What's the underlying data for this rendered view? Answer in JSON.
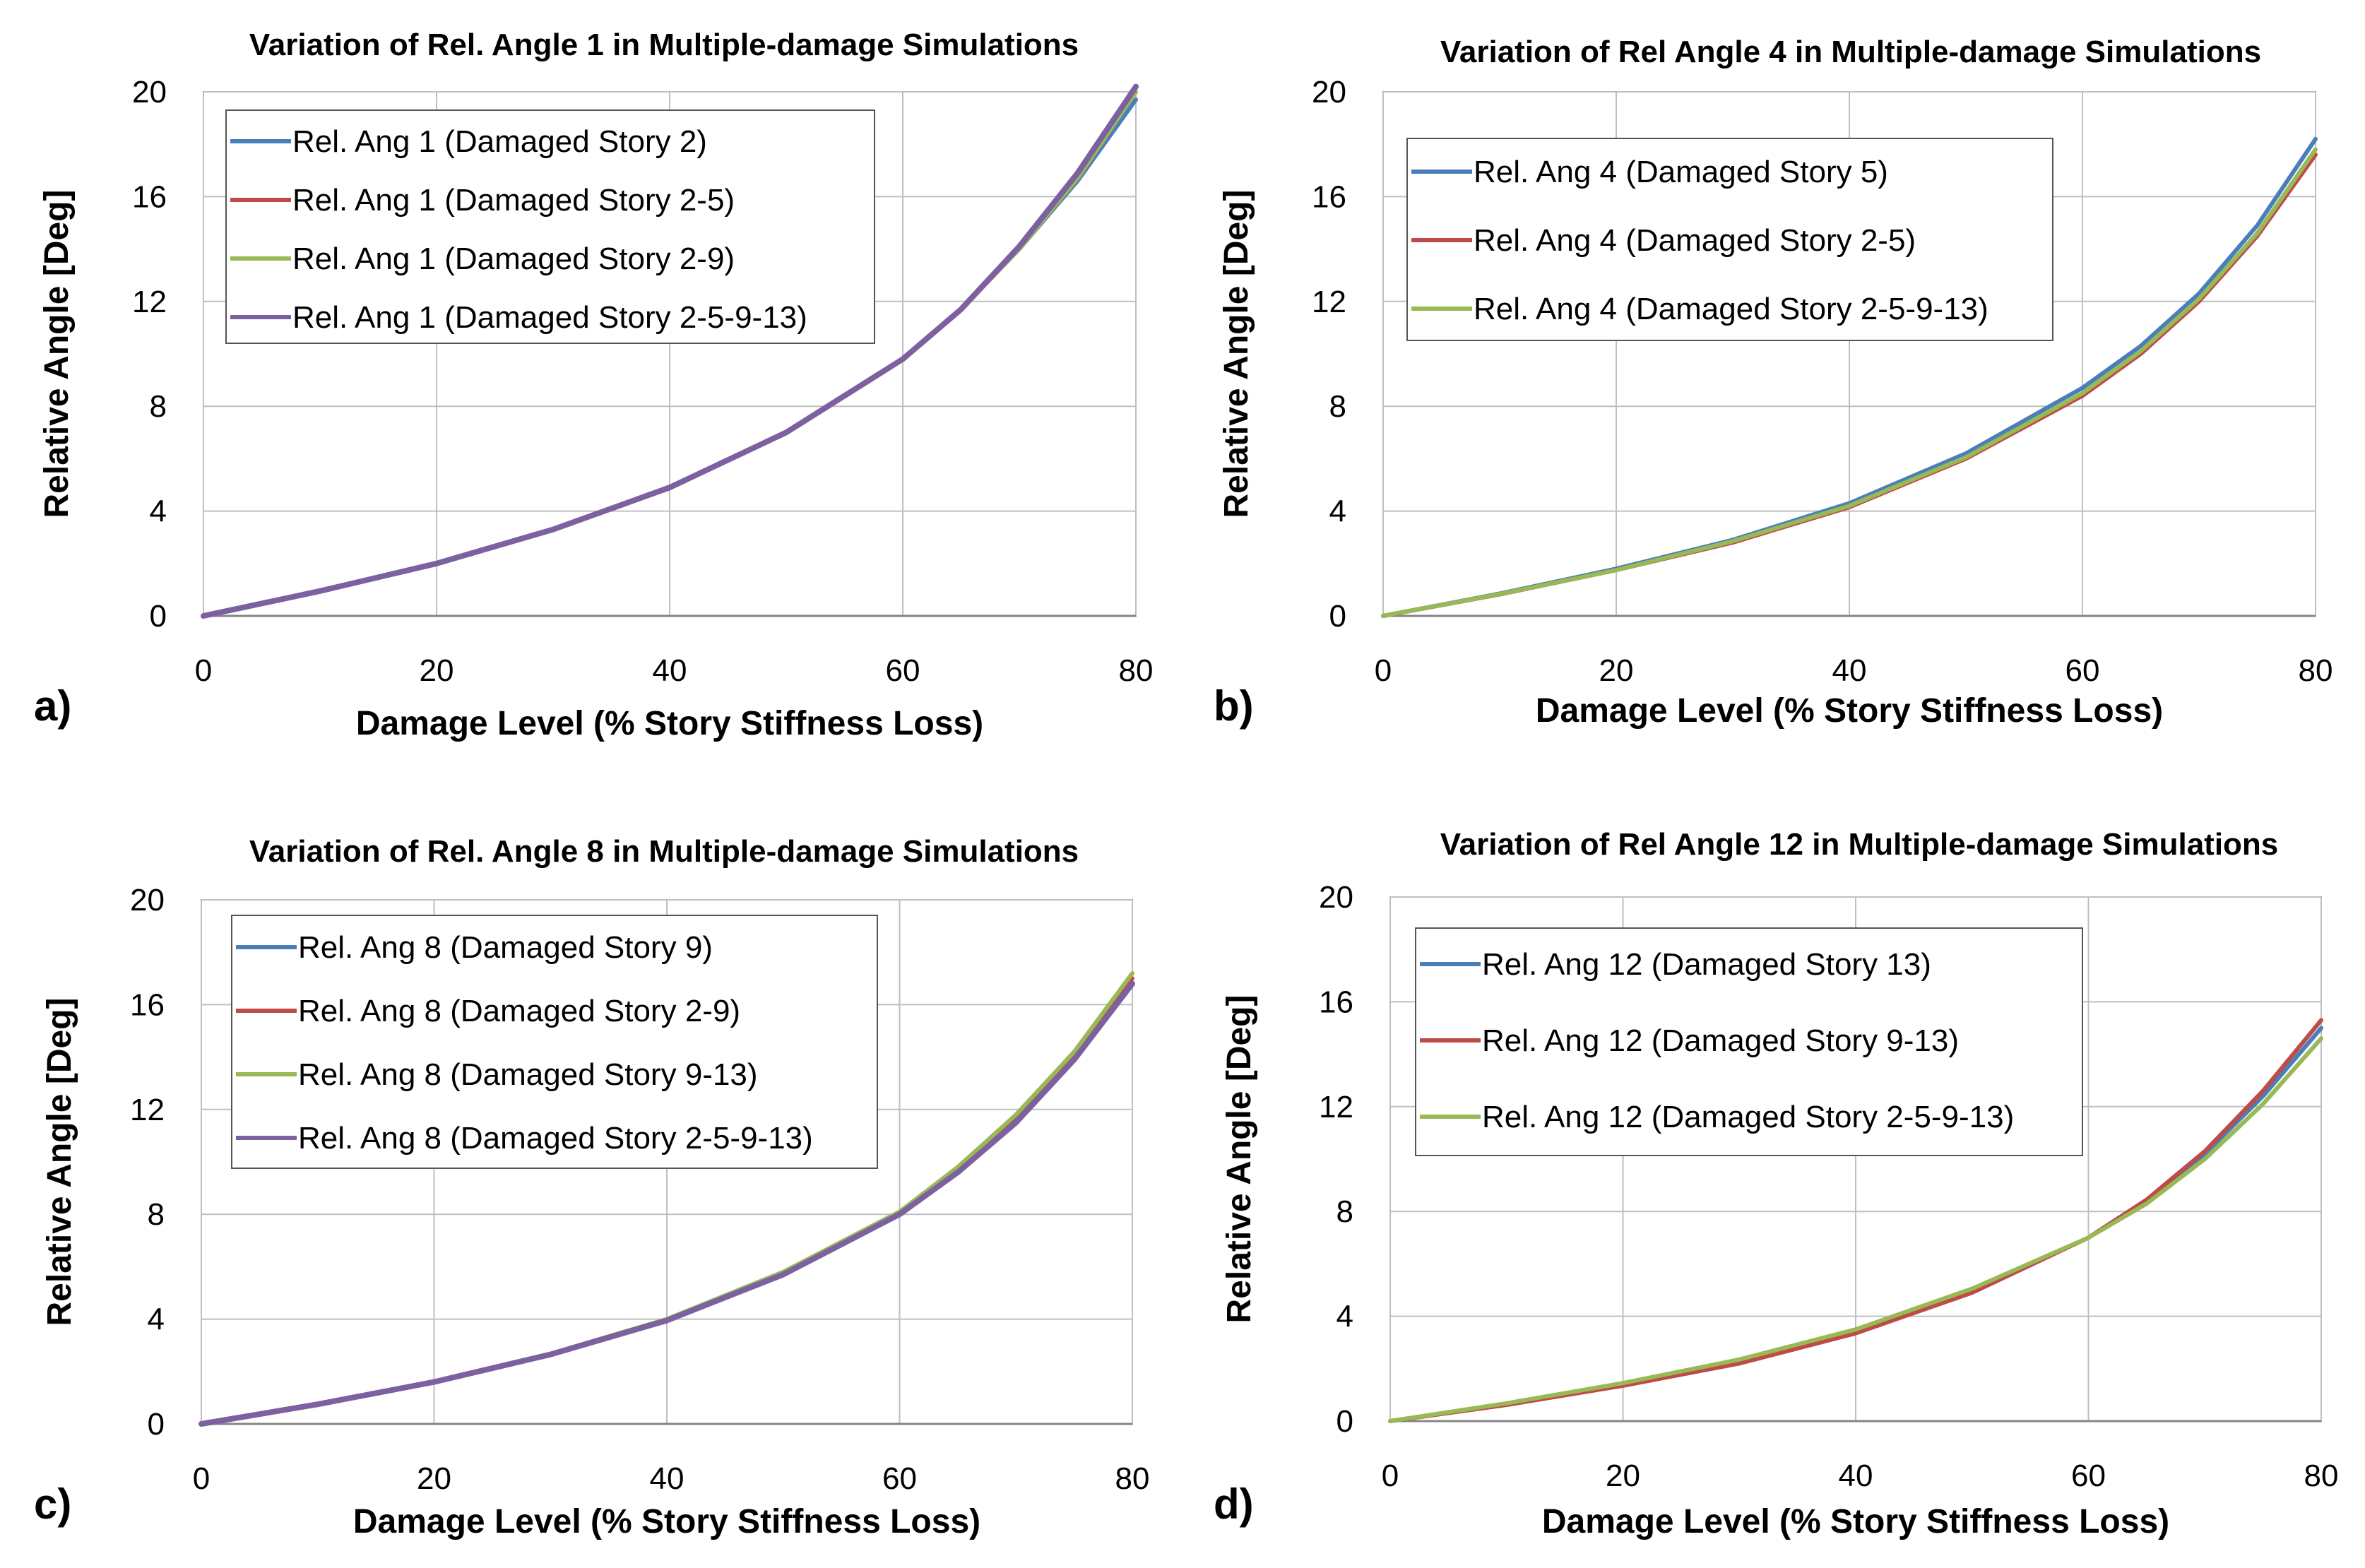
{
  "chart_data": [
    {
      "type": "line",
      "panel_label": "a)",
      "title": "Variation of Rel. Angle 1 in Multiple-damage Simulations",
      "xlabel": "Damage Level (% Story Stiffness Loss)",
      "ylabel": "Relative Angle [Deg]",
      "xlim": [
        0,
        80
      ],
      "ylim": [
        0,
        20
      ],
      "xticks": [
        "0",
        "20",
        "40",
        "60",
        "80"
      ],
      "yticks": [
        "0",
        "4",
        "8",
        "12",
        "16",
        "20"
      ],
      "grid": true,
      "legend_position": "top-left",
      "x": [
        0,
        10,
        20,
        30,
        40,
        50,
        60,
        65,
        70,
        75,
        80
      ],
      "series": [
        {
          "name": "Rel. Ang 1 (Damaged Story 2)",
          "color": "#4a7ebb",
          "values": [
            0,
            0.95,
            2.0,
            3.3,
            4.9,
            7.0,
            9.8,
            11.7,
            14.0,
            16.6,
            19.7
          ]
        },
        {
          "name": "Rel. Ang 1 (Damaged Story 2-5)",
          "color": "#be4b48",
          "values": [
            0,
            0.95,
            2.0,
            3.3,
            4.9,
            7.0,
            9.8,
            11.7,
            14.0,
            16.7,
            20.0
          ]
        },
        {
          "name": "Rel. Ang 1 (Damaged Story 2-9)",
          "color": "#98b954",
          "values": [
            0,
            0.95,
            2.0,
            3.3,
            4.9,
            7.0,
            9.8,
            11.7,
            14.0,
            16.7,
            20.0
          ]
        },
        {
          "name": "Rel. Ang 1 (Damaged Story 2-5-9-13)",
          "color": "#7d60a0",
          "values": [
            0,
            0.95,
            2.0,
            3.3,
            4.9,
            7.0,
            9.8,
            11.7,
            14.1,
            16.9,
            20.2
          ]
        }
      ]
    },
    {
      "type": "line",
      "panel_label": "b)",
      "title": "Variation of Rel Angle 4 in Multiple-damage Simulations",
      "xlabel": "Damage Level (% Story Stiffness Loss)",
      "ylabel": "Relative Angle [Deg]",
      "xlim": [
        0,
        80
      ],
      "ylim": [
        0,
        20
      ],
      "xticks": [
        "0",
        "20",
        "40",
        "60",
        "80"
      ],
      "yticks": [
        "0",
        "4",
        "8",
        "12",
        "16",
        "20"
      ],
      "grid": true,
      "legend_position": "top-left",
      "x": [
        0,
        10,
        20,
        30,
        40,
        50,
        60,
        65,
        70,
        75,
        80
      ],
      "series": [
        {
          "name": "Rel. Ang 4 (Damaged Story 5)",
          "color": "#4a7ebb",
          "values": [
            0,
            0.85,
            1.8,
            2.9,
            4.3,
            6.2,
            8.7,
            10.3,
            12.3,
            14.9,
            18.2
          ]
        },
        {
          "name": "Rel. Ang 4 (Damaged Story 2-5)",
          "color": "#be4b48",
          "values": [
            0,
            0.82,
            1.75,
            2.8,
            4.15,
            6.0,
            8.4,
            10.0,
            12.0,
            14.5,
            17.6
          ]
        },
        {
          "name": "Rel. Ang 4 (Damaged Story 2-5-9-13)",
          "color": "#98b954",
          "values": [
            0,
            0.83,
            1.75,
            2.85,
            4.2,
            6.05,
            8.5,
            10.1,
            12.1,
            14.6,
            17.8
          ]
        }
      ]
    },
    {
      "type": "line",
      "panel_label": "c)",
      "title": "Variation of Rel. Angle 8 in Multiple-damage Simulations",
      "xlabel": "Damage Level (% Story Stiffness Loss)",
      "ylabel": "Relative Angle [Deg]",
      "xlim": [
        0,
        80
      ],
      "ylim": [
        0,
        20
      ],
      "xticks": [
        "0",
        "20",
        "40",
        "60",
        "80"
      ],
      "yticks": [
        "0",
        "4",
        "8",
        "12",
        "16",
        "20"
      ],
      "grid": true,
      "legend_position": "top-left",
      "x": [
        0,
        10,
        20,
        30,
        40,
        50,
        60,
        65,
        70,
        75,
        80
      ],
      "series": [
        {
          "name": "Rel. Ang 8 (Damaged Story 9)",
          "color": "#4a7ebb",
          "values": [
            0,
            0.75,
            1.6,
            2.65,
            3.95,
            5.7,
            8.0,
            9.6,
            11.6,
            13.9,
            16.8
          ]
        },
        {
          "name": "Rel. Ang 8 (Damaged Story 2-9)",
          "color": "#be4b48",
          "values": [
            0,
            0.75,
            1.6,
            2.65,
            3.95,
            5.7,
            8.0,
            9.6,
            11.6,
            14.0,
            17.0
          ]
        },
        {
          "name": "Rel. Ang 8 (Damaged Story 9-13)",
          "color": "#98b954",
          "values": [
            0,
            0.76,
            1.62,
            2.68,
            4.0,
            5.8,
            8.1,
            9.8,
            11.8,
            14.2,
            17.2
          ]
        },
        {
          "name": "Rel. Ang 8 (Damaged Story 2-5-9-13)",
          "color": "#7d60a0",
          "values": [
            0,
            0.75,
            1.6,
            2.65,
            3.95,
            5.7,
            8.0,
            9.6,
            11.5,
            13.9,
            16.8
          ]
        }
      ]
    },
    {
      "type": "line",
      "panel_label": "d)",
      "title": "Variation of Rel Angle 12 in Multiple-damage Simulations",
      "xlabel": "Damage Level (% Story Stiffness Loss)",
      "ylabel": "Relative Angle [Deg]",
      "xlim": [
        0,
        80
      ],
      "ylim": [
        0,
        20
      ],
      "xticks": [
        "0",
        "20",
        "40",
        "60",
        "80"
      ],
      "yticks": [
        "0",
        "4",
        "8",
        "12",
        "16",
        "20"
      ],
      "grid": true,
      "legend_position": "top-left",
      "x": [
        0,
        10,
        20,
        30,
        40,
        50,
        60,
        65,
        70,
        75,
        80
      ],
      "series": [
        {
          "name": "Rel. Ang 12 (Damaged Story 13)",
          "color": "#4a7ebb",
          "values": [
            0,
            0.65,
            1.4,
            2.3,
            3.45,
            5.0,
            7.0,
            8.4,
            10.2,
            12.4,
            15.0
          ]
        },
        {
          "name": "Rel. Ang 12 (Damaged Story 9-13)",
          "color": "#be4b48",
          "values": [
            0,
            0.62,
            1.35,
            2.2,
            3.35,
            4.9,
            7.0,
            8.45,
            10.3,
            12.6,
            15.3
          ]
        },
        {
          "name": "Rel. Ang 12 (Damaged Story 2-5-9-13)",
          "color": "#98b954",
          "values": [
            0,
            0.68,
            1.45,
            2.35,
            3.5,
            5.05,
            7.0,
            8.3,
            10.0,
            12.1,
            14.6
          ]
        }
      ]
    }
  ]
}
